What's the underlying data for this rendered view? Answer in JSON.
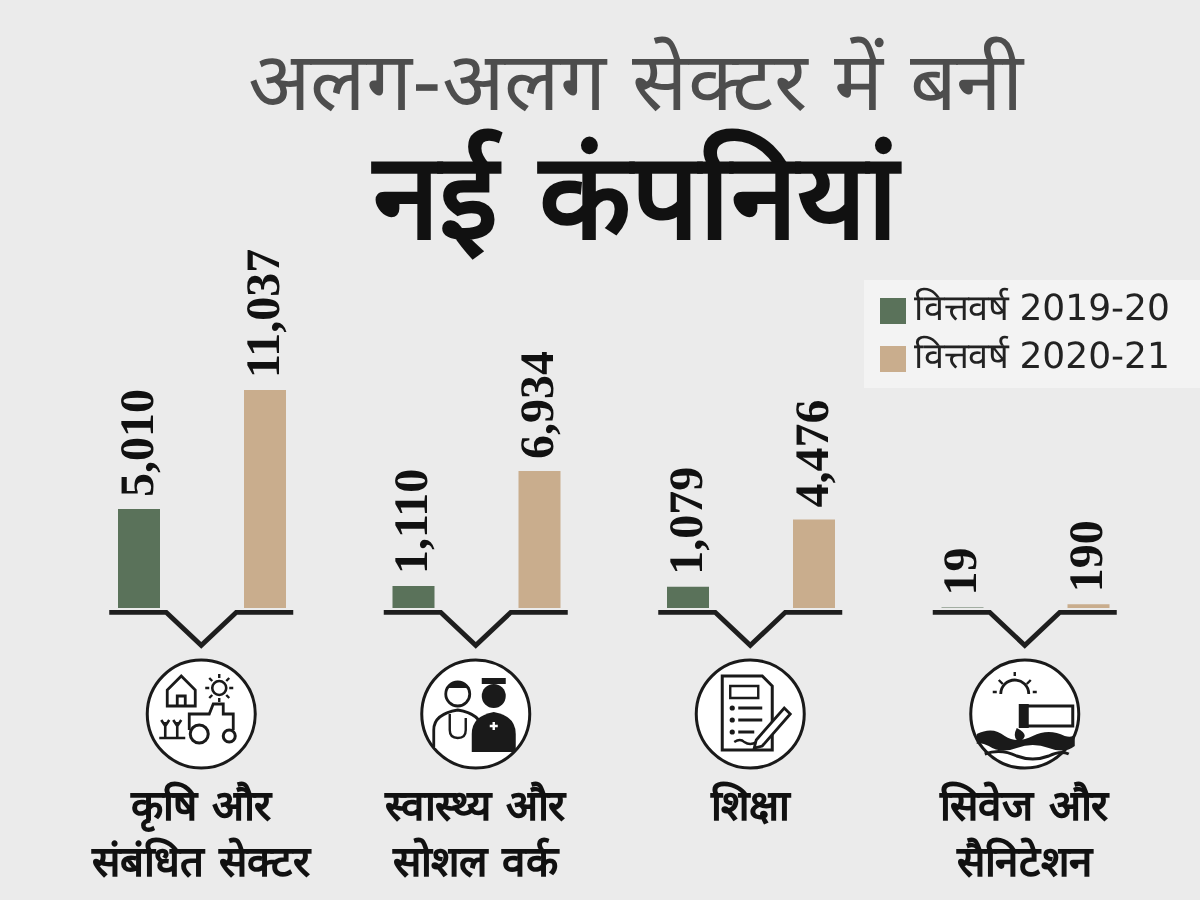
{
  "chart_data": {
    "type": "bar",
    "title": "अलग-अलग सेक्टर में बनी",
    "subtitle": "नई कंपनियां",
    "categories": [
      "कृषि और संबंधित सेक्टर",
      "स्वास्थ्य और सोशल वर्क",
      "शिक्षा",
      "सिवेज और सैनिटेशन"
    ],
    "series": [
      {
        "name": "वित्तवर्ष 2019-20",
        "color": "#5a725a",
        "values": [
          5010,
          1110,
          1079,
          19
        ],
        "value_labels": [
          "5,010",
          "1,110",
          "1,079",
          "19"
        ]
      },
      {
        "name": "वित्तवर्ष 2020-21",
        "color": "#c9ad8d",
        "values": [
          11037,
          6934,
          4476,
          190
        ],
        "value_labels": [
          "11,037",
          "6,934",
          "4,476",
          "190"
        ]
      }
    ],
    "legend": "top right"
  }
}
